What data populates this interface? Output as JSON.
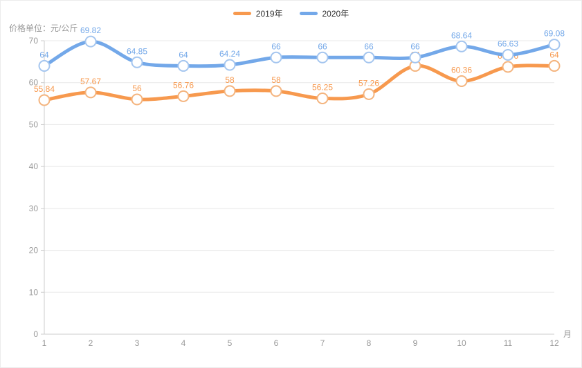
{
  "chart_data": {
    "type": "line",
    "title": "价格单位：元/公斤",
    "x_axis_unit": "月",
    "categories": [
      "1",
      "2",
      "3",
      "4",
      "5",
      "6",
      "7",
      "8",
      "9",
      "10",
      "11",
      "12"
    ],
    "series": [
      {
        "name": "2019年",
        "color": "#f7994e",
        "marker_border": "#f4b47e",
        "values": [
          55.84,
          57.67,
          56,
          56.76,
          58,
          58,
          56.25,
          57.26,
          64,
          60.36,
          63.76,
          64
        ],
        "smooth": true,
        "point_labels": true
      },
      {
        "name": "2020年",
        "color": "#73a8e9",
        "marker_border": "#a5c6ef",
        "values": [
          64,
          69.82,
          64.85,
          64,
          64.24,
          66,
          66,
          66,
          66,
          68.64,
          66.63,
          69.08
        ],
        "smooth": true,
        "point_labels": true
      }
    ],
    "ylim": [
      0,
      70
    ],
    "y_ticks": [
      0,
      10,
      20,
      30,
      40,
      50,
      60,
      70
    ],
    "grid": true,
    "legend_position": "top-center"
  },
  "colors": {
    "background": "#ffffff",
    "grid_line": "#e8e8e8",
    "axis_line": "#cccccc",
    "axis_label": "#999999",
    "legend_text": "#333333"
  }
}
